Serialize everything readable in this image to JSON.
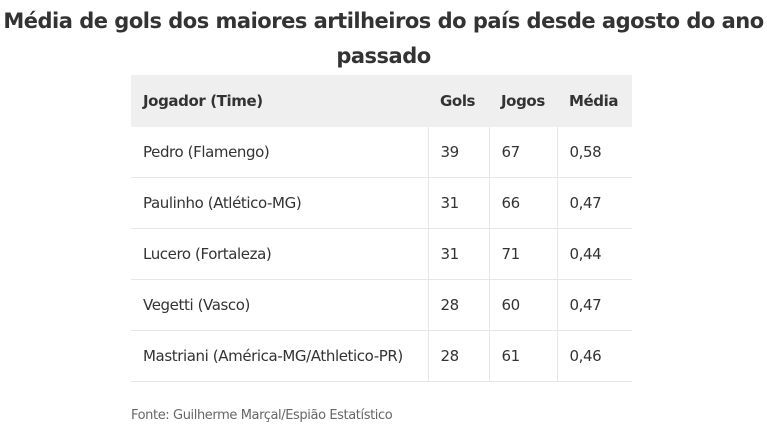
{
  "header": {
    "title": "Média de gols dos maiores artilheiros do país desde agosto do ano passado"
  },
  "table": {
    "columns": [
      "Jogador (Time)",
      "Gols",
      "Jogos",
      "Média"
    ],
    "rows": [
      [
        "Pedro (Flamengo)",
        "39",
        "67",
        "0,58"
      ],
      [
        "Paulinho (Atlético-MG)",
        "31",
        "66",
        "0,47"
      ],
      [
        "Lucero (Fortaleza)",
        "31",
        "71",
        "0,44"
      ],
      [
        "Vegetti (Vasco)",
        "28",
        "60",
        "0,47"
      ],
      [
        "Mastriani (América-MG/Athletico-PR)",
        "28",
        "61",
        "0,46"
      ]
    ]
  },
  "footer": {
    "source": "Fonte: Guilherme Marçal/Espião Estatístico"
  }
}
